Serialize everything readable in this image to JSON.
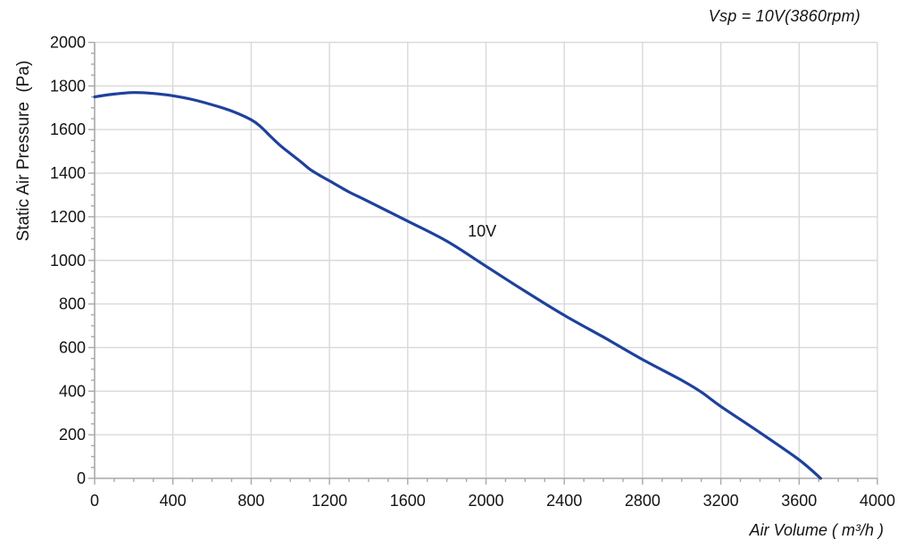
{
  "chart_data": {
    "type": "line",
    "title": "",
    "annotation": "Vsp = 10V(3860rpm)",
    "xlabel": "Air Volume ( m³/h )",
    "ylabel": "Static Air Pressure  (Pa)",
    "xlim": [
      0,
      4000
    ],
    "ylim": [
      0,
      2000
    ],
    "x_ticks_major": [
      0,
      400,
      800,
      1200,
      1600,
      2000,
      2400,
      2800,
      3200,
      3600,
      4000
    ],
    "y_ticks_major": [
      0,
      200,
      400,
      600,
      800,
      1000,
      1200,
      1400,
      1600,
      1800,
      2000
    ],
    "x_minor_step": 100,
    "y_minor_step": 50,
    "grid": "major",
    "legend_position": "none",
    "series": [
      {
        "name": "10V",
        "label": {
          "text": "10V",
          "x": 1980,
          "y": 1110
        },
        "color": "#1e419d",
        "points": [
          [
            0,
            1750
          ],
          [
            100,
            1763
          ],
          [
            200,
            1770
          ],
          [
            300,
            1766
          ],
          [
            400,
            1755
          ],
          [
            500,
            1738
          ],
          [
            600,
            1714
          ],
          [
            700,
            1685
          ],
          [
            800,
            1645
          ],
          [
            850,
            1612
          ],
          [
            900,
            1568
          ],
          [
            950,
            1526
          ],
          [
            1000,
            1490
          ],
          [
            1050,
            1455
          ],
          [
            1100,
            1418
          ],
          [
            1150,
            1390
          ],
          [
            1200,
            1365
          ],
          [
            1300,
            1314
          ],
          [
            1400,
            1270
          ],
          [
            1600,
            1180
          ],
          [
            1800,
            1088
          ],
          [
            2000,
            973
          ],
          [
            2200,
            858
          ],
          [
            2400,
            748
          ],
          [
            2600,
            648
          ],
          [
            2800,
            545
          ],
          [
            3000,
            450
          ],
          [
            3100,
            396
          ],
          [
            3200,
            330
          ],
          [
            3400,
            210
          ],
          [
            3600,
            85
          ],
          [
            3710,
            0
          ]
        ]
      }
    ],
    "colors": {
      "curve": "#1e419d",
      "grid": "#d9d9d9",
      "axis": "#a8a8a8",
      "text": "#141414"
    }
  }
}
